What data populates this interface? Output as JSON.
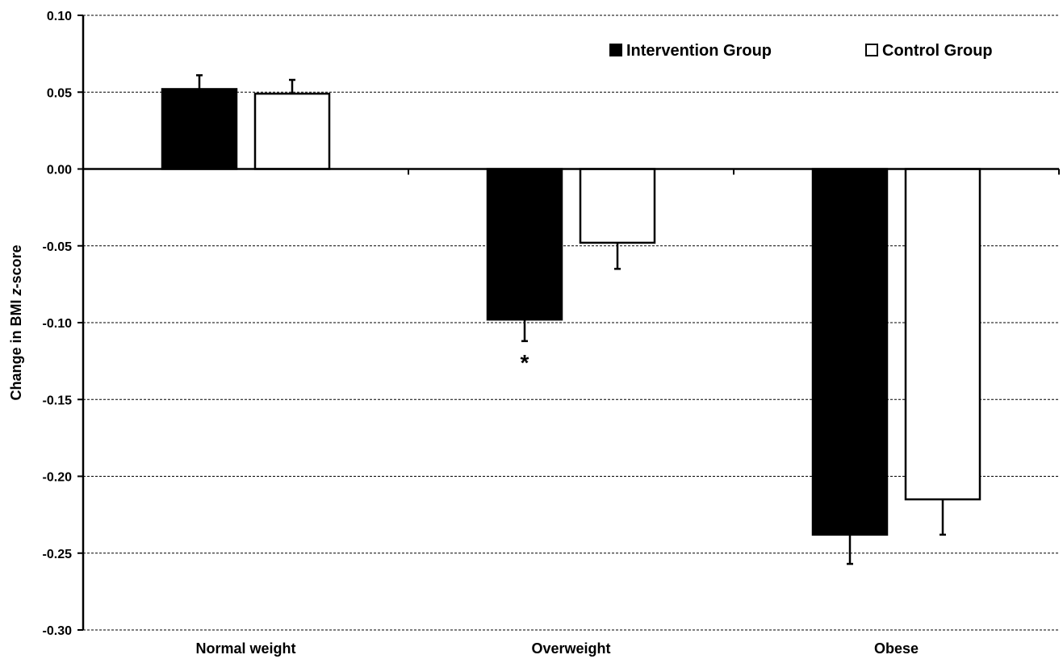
{
  "chart_data": {
    "type": "bar",
    "categories": [
      "Normal weight",
      "Overweight",
      "Obese"
    ],
    "series": [
      {
        "name": "Intervention Group",
        "values": [
          0.052,
          -0.098,
          -0.238
        ],
        "errors": [
          0.009,
          0.014,
          0.019
        ],
        "color": "#000000"
      },
      {
        "name": "Control Group",
        "values": [
          0.049,
          -0.048,
          -0.215
        ],
        "errors": [
          0.009,
          0.017,
          0.023
        ],
        "color": "#ffffff"
      }
    ],
    "ylabel_prefix": "Change in BMI ",
    "ylabel_italic": "z",
    "ylabel_suffix": "-score",
    "ylim": [
      -0.3,
      0.1
    ],
    "yticks": [
      "0.10",
      "0.05",
      "0.00",
      "-0.05",
      "-0.10",
      "-0.15",
      "-0.20",
      "-0.25",
      "-0.30"
    ],
    "grid": "horizontal-dashed",
    "legend_position": "top-right",
    "annotations": [
      {
        "text": "*",
        "category": "Overweight",
        "series": "Intervention Group"
      }
    ]
  }
}
